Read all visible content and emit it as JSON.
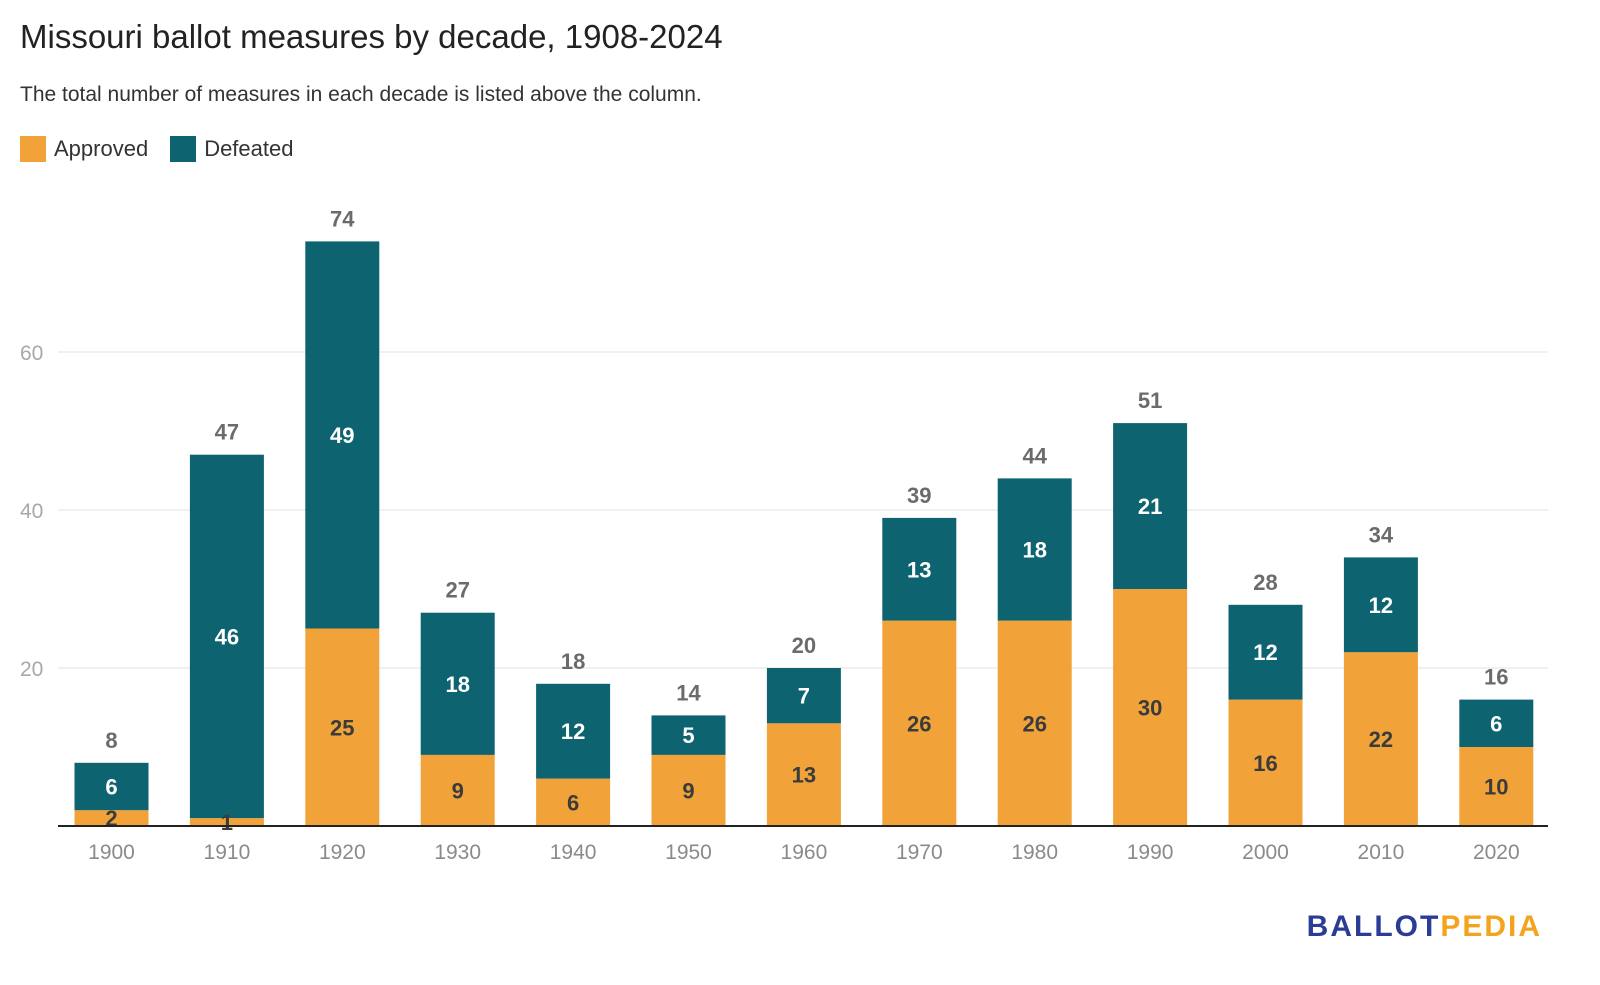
{
  "title": "Missouri ballot measures by decade, 1908-2024",
  "subtitle": "The total number of measures in each decade is listed above the column.",
  "legend": {
    "approved": {
      "label": "Approved",
      "color": "#F1A33A"
    },
    "defeated": {
      "label": "Defeated",
      "color": "#0E6370"
    }
  },
  "logo": {
    "part1": "BALLOT",
    "part2": "PEDIA",
    "color1": "#2b3c96",
    "color2": "#f3a41c"
  },
  "chart_data": {
    "type": "bar",
    "stacked": true,
    "categories": [
      "1900",
      "1910",
      "1920",
      "1930",
      "1940",
      "1950",
      "1960",
      "1970",
      "1980",
      "1990",
      "2000",
      "2010",
      "2020"
    ],
    "series": [
      {
        "name": "Approved",
        "color": "#F1A33A",
        "values": [
          2,
          1,
          25,
          9,
          6,
          9,
          13,
          26,
          26,
          30,
          16,
          22,
          10
        ]
      },
      {
        "name": "Defeated",
        "color": "#0E6370",
        "values": [
          6,
          46,
          49,
          18,
          12,
          5,
          7,
          13,
          18,
          21,
          12,
          12,
          6
        ]
      }
    ],
    "totals": [
      8,
      47,
      74,
      27,
      18,
      14,
      20,
      39,
      44,
      51,
      28,
      34,
      16
    ],
    "yticks": [
      20,
      40,
      60
    ],
    "ylim": [
      0,
      80
    ],
    "grid": true,
    "legend_position": "top-left"
  }
}
